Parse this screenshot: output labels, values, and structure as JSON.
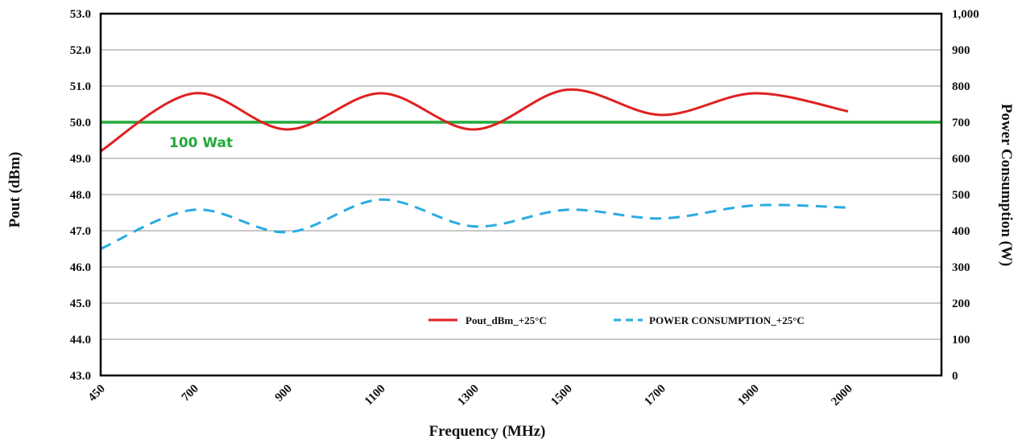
{
  "chart_data": {
    "type": "line",
    "x_ticks": [
      "450",
      "700",
      "900",
      "1100",
      "1300",
      "1500",
      "1700",
      "1900",
      "2000"
    ],
    "xlabel": "Frequency (MHz)",
    "ylabel_left": "Pout (dBm)",
    "ylabel_right": "Power Consumption (W)",
    "ylim_left": [
      43.0,
      53.0
    ],
    "ylim_right": [
      0,
      1000
    ],
    "y_ticks_left": [
      "43.0",
      "44.0",
      "45.0",
      "46.0",
      "47.0",
      "48.0",
      "49.0",
      "50.0",
      "51.0",
      "52.0",
      "53.0"
    ],
    "y_ticks_right": [
      "0",
      "100",
      "200",
      "300",
      "400",
      "500",
      "600",
      "700",
      "800",
      "900",
      "1,000"
    ],
    "grid": true,
    "legend_position": "bottom-center",
    "series": [
      {
        "name": "Pout_dBm_+25°C",
        "axis": "left",
        "style": "solid",
        "color": "#e02020",
        "x": [
          "450",
          "700",
          "900",
          "1100",
          "1300",
          "1500",
          "1700",
          "1900",
          "2000"
        ],
        "values": [
          49.2,
          50.8,
          49.8,
          50.8,
          49.8,
          50.9,
          50.2,
          50.8,
          50.3
        ]
      },
      {
        "name": "POWER CONSUMPTION_+25°C",
        "axis": "right",
        "style": "dashed",
        "color": "#29abe2",
        "x": [
          "450",
          "700",
          "900",
          "1100",
          "1300",
          "1500",
          "1700",
          "1900",
          "2000"
        ],
        "values": [
          350,
          458,
          396,
          486,
          412,
          458,
          434,
          470,
          464
        ]
      }
    ],
    "reference_line": {
      "label": "100 Wat",
      "value": 50.0,
      "axis": "left",
      "color": "#22aa3a"
    }
  }
}
